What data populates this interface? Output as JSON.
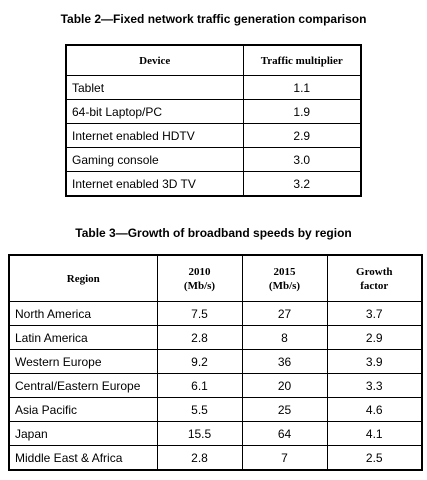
{
  "table2": {
    "caption": "Table 2—Fixed network traffic generation comparison",
    "headers": [
      "Device",
      "Traffic multiplier"
    ],
    "rows": [
      {
        "device": "Tablet",
        "multiplier": "1.1"
      },
      {
        "device": "64-bit Laptop/PC",
        "multiplier": "1.9"
      },
      {
        "device": "Internet enabled HDTV",
        "multiplier": "2.9"
      },
      {
        "device": "Gaming console",
        "multiplier": "3.0"
      },
      {
        "device": "Internet enabled 3D TV",
        "multiplier": "3.2"
      }
    ]
  },
  "table3": {
    "caption": "Table 3—Growth of broadband speeds by region",
    "headers": {
      "region": "Region",
      "y2010_line1": "2010",
      "y2010_line2": "(Mb/s)",
      "y2015_line1": "2015",
      "y2015_line2": "(Mb/s)",
      "growth_line1": "Growth",
      "growth_line2": "factor"
    },
    "rows": [
      {
        "region": "North America",
        "y2010": "7.5",
        "y2015": "27",
        "growth": "3.7"
      },
      {
        "region": "Latin America",
        "y2010": "2.8",
        "y2015": "8",
        "growth": "2.9"
      },
      {
        "region": "Western Europe",
        "y2010": "9.2",
        "y2015": "36",
        "growth": "3.9"
      },
      {
        "region": "Central/Eastern Europe",
        "y2010": "6.1",
        "y2015": "20",
        "growth": "3.3"
      },
      {
        "region": "Asia Pacific",
        "y2010": "5.5",
        "y2015": "25",
        "growth": "4.6"
      },
      {
        "region": "Japan",
        "y2010": "15.5",
        "y2015": "64",
        "growth": "4.1"
      },
      {
        "region": "Middle East & Africa",
        "y2010": "2.8",
        "y2015": "7",
        "growth": "2.5"
      }
    ]
  }
}
